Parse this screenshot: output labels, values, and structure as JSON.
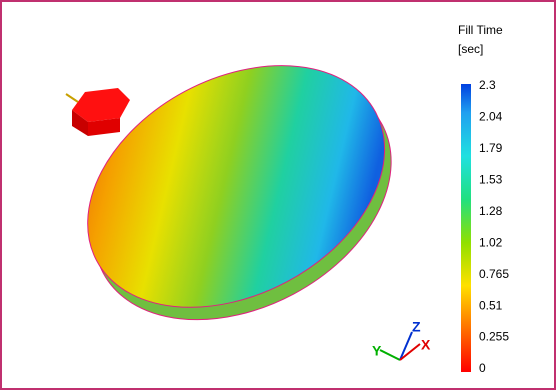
{
  "legend": {
    "title": "Fill Time",
    "unit": "[sec]",
    "ticks": [
      2.3,
      2.04,
      1.79,
      1.53,
      1.28,
      1.02,
      0.765,
      0.51,
      0.255,
      0
    ]
  },
  "triad": {
    "x": "X",
    "y": "Y",
    "z": "Z"
  }
}
